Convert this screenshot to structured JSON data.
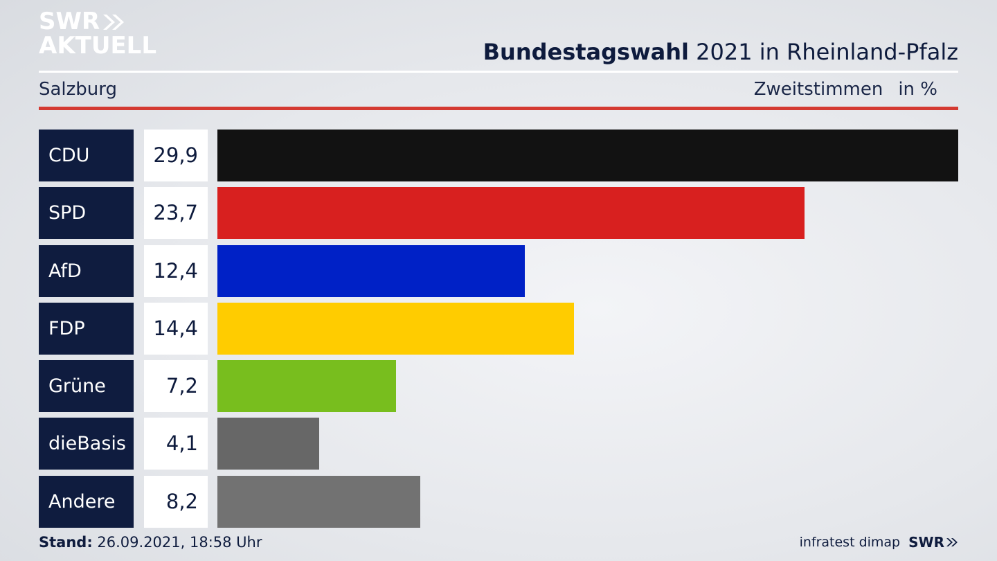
{
  "header": {
    "logo_line1": "SWR",
    "logo_line2": "AKTUELL",
    "title_bold": "Bundestagswahl",
    "title_rest": " 2021 in Rheinland-Pfalz",
    "subtitle": "Salzburg",
    "metric": "Zweitstimmen",
    "unit": "in %"
  },
  "footer": {
    "stand_label": "Stand:",
    "stand_value": " 26.09.2021, 18:58 Uhr",
    "source": "infratest dimap",
    "brand": "SWR"
  },
  "chart_data": {
    "type": "bar",
    "orientation": "horizontal",
    "categories": [
      "CDU",
      "SPD",
      "AfD",
      "FDP",
      "Grüne",
      "dieBasis",
      "Andere"
    ],
    "values": [
      29.9,
      23.7,
      12.4,
      14.4,
      7.2,
      4.1,
      8.2
    ],
    "value_labels": [
      "29,9",
      "23,7",
      "12,4",
      "14,4",
      "7,2",
      "4,1",
      "8,2"
    ],
    "colors": [
      "#121212",
      "#d8201f",
      "#0021c6",
      "#ffcc00",
      "#78be1e",
      "#676767",
      "#727272"
    ],
    "title": "Bundestagswahl 2021 in Rheinland-Pfalz",
    "subtitle": "Salzburg",
    "xlabel": "",
    "ylabel": "Zweitstimmen in %",
    "xlim": [
      0,
      29.9
    ],
    "grid": false
  },
  "colors": {
    "navy": "#0f1c3f",
    "accent_red": "#d43a32"
  }
}
